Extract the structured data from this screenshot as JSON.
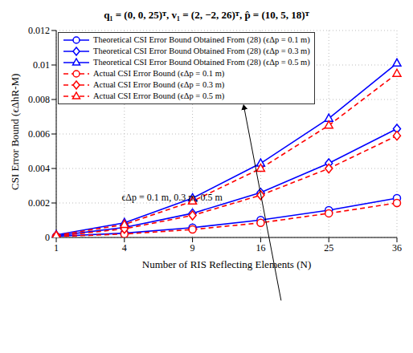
{
  "chart_data": {
    "type": "line",
    "title": "q₁ = (0, 0, 25)ᵀ, v₁ = (2, −2, 26)ᵀ, p̂ = (10, 5, 18)ᵀ",
    "x_label": "Number of RIS Reflecting Elements (N)",
    "y_label": "CSI Error Bound (ϵΔhR-M)",
    "categories": [
      "1",
      "4",
      "9",
      "16",
      "25",
      "36"
    ],
    "ylim": [
      0,
      0.012
    ],
    "yticks": [
      0,
      0.002,
      0.004,
      0.006,
      0.008,
      0.01,
      0.012
    ],
    "grid": true,
    "legend": "upper left",
    "annotation": "ϵΔp = 0.1 m, 0.3 m, 0.5 m",
    "series": [
      {
        "name": "Theoretical CSI Error Bound Obtained From (28) (ϵΔp = 0.1 m)",
        "color": "#0000ff",
        "marker": "circle",
        "line_style": "solid",
        "values": [
          7e-05,
          0.00025,
          0.00057,
          0.00101,
          0.00158,
          0.00228
        ]
      },
      {
        "name": "Theoretical CSI Error Bound Obtained From (28) (ϵΔp = 0.3 m)",
        "color": "#0000ff",
        "marker": "diamond",
        "line_style": "solid",
        "values": [
          0.0001,
          0.00058,
          0.0014,
          0.0026,
          0.0043,
          0.0063
        ]
      },
      {
        "name": "Theoretical CSI Error Bound Obtained From (28) (ϵΔp = 0.5 m)",
        "color": "#0000ff",
        "marker": "triangle",
        "line_style": "solid",
        "values": [
          0.00015,
          0.00085,
          0.00228,
          0.0043,
          0.0069,
          0.0101
        ]
      },
      {
        "name": "Actual CSI Error Bound (ϵΔp = 0.1 m)",
        "color": "#ff0000",
        "marker": "circle",
        "line_style": "dashed",
        "values": [
          5e-05,
          0.0002,
          0.00046,
          0.00085,
          0.0014,
          0.002
        ]
      },
      {
        "name": "Actual CSI Error Bound (ϵΔp = 0.3 m)",
        "color": "#ff0000",
        "marker": "diamond",
        "line_style": "dashed",
        "values": [
          8e-05,
          0.0005,
          0.00128,
          0.00245,
          0.004,
          0.0059
        ]
      },
      {
        "name": "Actual CSI Error Bound (ϵΔp = 0.5 m)",
        "color": "#ff0000",
        "marker": "triangle",
        "line_style": "dashed",
        "values": [
          0.00012,
          0.00075,
          0.0021,
          0.004,
          0.0065,
          0.0095
        ]
      }
    ]
  }
}
